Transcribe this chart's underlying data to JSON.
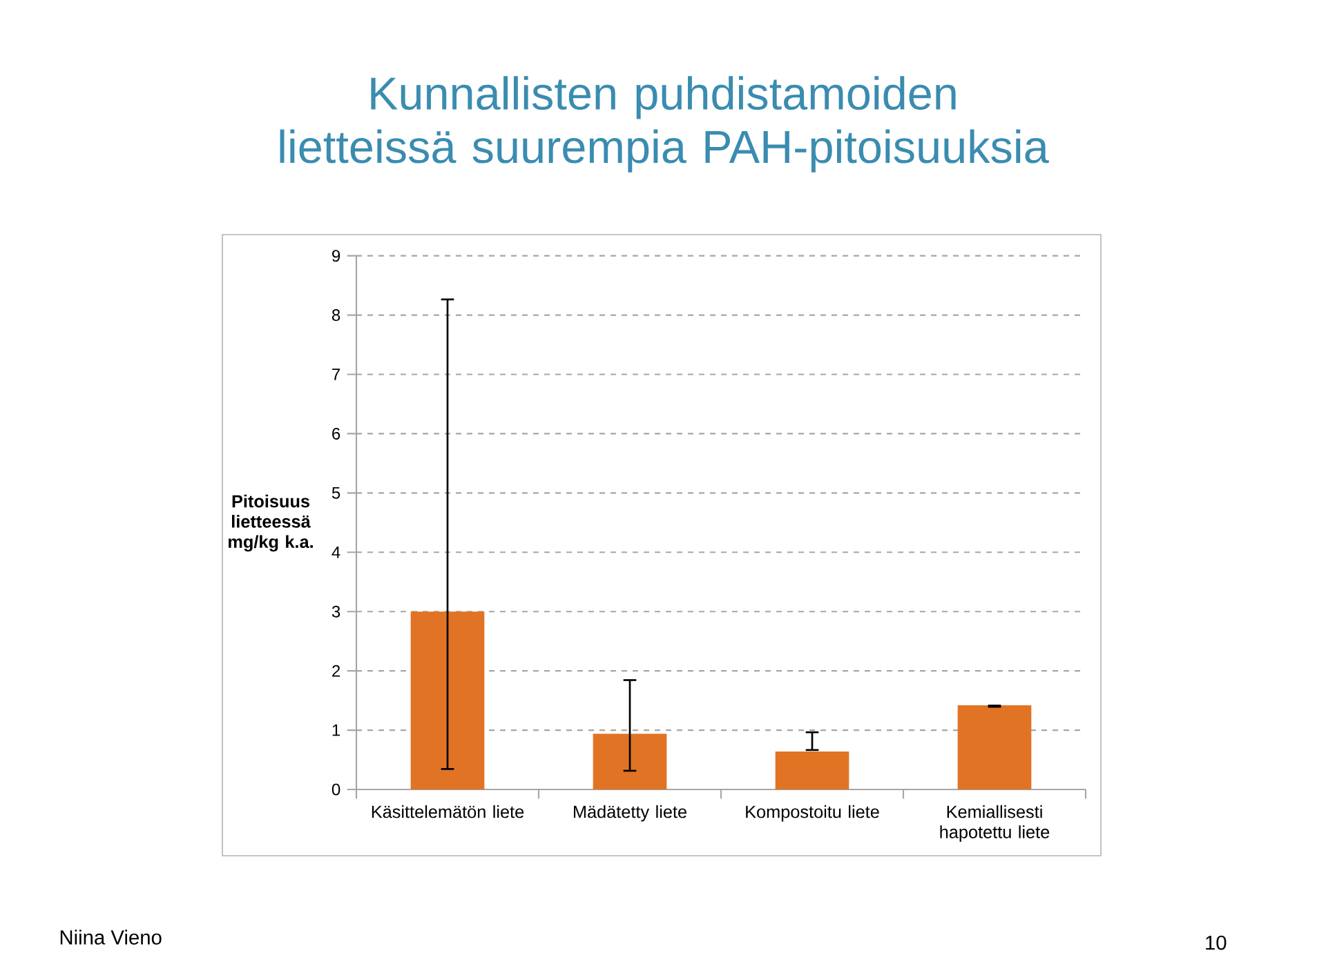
{
  "chart_data": {
    "type": "bar",
    "title": "Kunnallisten puhdistamoiden lietteissä suurempia PAH-pitoisuuksia",
    "ylabel": "Pitoisuus lietteessä mg/kg k.a.",
    "categories": [
      "Käsittelemätön liete",
      "Mädätetty liete",
      "Kompostoitu liete",
      "Kemiallisesti hapotettu liete"
    ],
    "values": [
      3.0,
      0.94,
      0.64,
      1.42
    ],
    "errors": [
      [
        0.33,
        8.28
      ],
      [
        0.3,
        1.86
      ],
      [
        0.65,
        0.98
      ],
      [
        1.41,
        1.43
      ]
    ],
    "color": "#e07424",
    "ylim": [
      0,
      9
    ],
    "yticks": [
      0,
      1,
      2,
      3,
      4,
      5,
      6,
      7,
      8,
      9
    ],
    "grid": "y",
    "annotations": [
      "Niina Vieno",
      "10"
    ]
  }
}
